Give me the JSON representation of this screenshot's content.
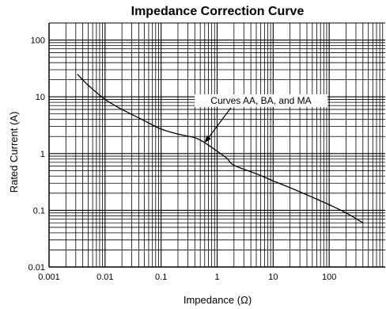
{
  "chart_data": {
    "type": "line",
    "title": "Impedance Correction Curve",
    "xlabel": "Impedance (Ω)",
    "ylabel": "Rated Current (A)",
    "xscale": "log",
    "yscale": "log",
    "xlim": [
      0.001,
      1000
    ],
    "ylim": [
      0.01,
      200
    ],
    "xticks": [
      0.001,
      0.01,
      0.1,
      1,
      10,
      100
    ],
    "xtick_labels": [
      "0.001",
      "0.01",
      "0.1",
      "1",
      "10",
      "100"
    ],
    "yticks": [
      0.01,
      0.1,
      1,
      10,
      100
    ],
    "ytick_labels": [
      "0.01",
      "0.1",
      "1",
      "10",
      "100"
    ],
    "grid": true,
    "series": [
      {
        "x": [
          0.0032,
          0.005,
          0.01,
          0.02,
          0.05,
          0.1,
          0.2,
          0.4,
          0.6,
          1.0,
          1.5,
          2.0,
          5.0,
          10,
          20,
          50,
          100,
          200,
          400
        ],
        "values": [
          25,
          16,
          9.0,
          6.0,
          3.8,
          2.7,
          2.2,
          1.9,
          1.55,
          1.1,
          0.82,
          0.62,
          0.44,
          0.33,
          0.25,
          0.17,
          0.125,
          0.09,
          0.06
        ]
      }
    ],
    "annotations": [
      {
        "text": "Curves AA, BA, and MA",
        "x": 0.6,
        "y": 1.55
      }
    ]
  }
}
